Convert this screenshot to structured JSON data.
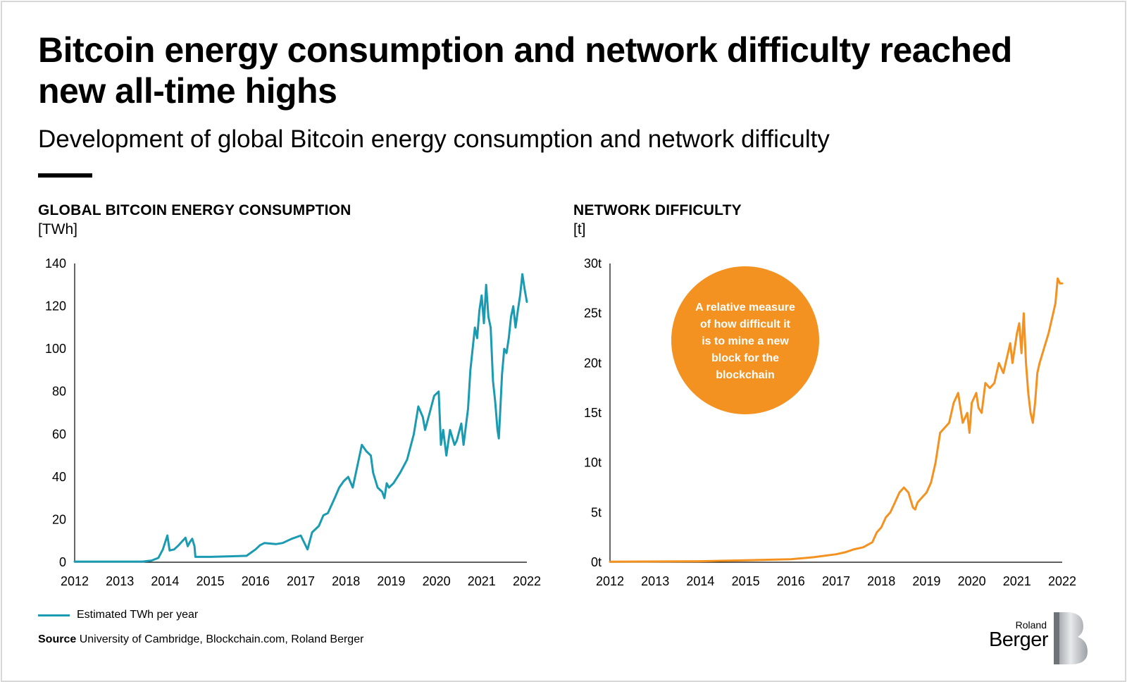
{
  "header": {
    "title": "Bitcoin energy consumption and network difficulty reached new all-time highs",
    "subtitle": "Development of global Bitcoin energy consumption and network difficulty"
  },
  "chart_data": [
    {
      "type": "line",
      "title": "GLOBAL BITCOIN ENERGY CONSUMPTION",
      "unit": "[TWh]",
      "color": "#1a9bb2",
      "xlim": [
        2012,
        2022
      ],
      "ylim": [
        0,
        140
      ],
      "x_ticks": [
        "2012",
        "2013",
        "2014",
        "2015",
        "2016",
        "2017",
        "2018",
        "2019",
        "2020",
        "2021",
        "2022"
      ],
      "y_ticks": [
        "0",
        "20",
        "40",
        "60",
        "80",
        "100",
        "120",
        "140"
      ],
      "y_tick_values": [
        0,
        20,
        40,
        60,
        80,
        100,
        120,
        140
      ],
      "series": [
        {
          "name": "Estimated TWh per year",
          "x": [
            2012.0,
            2013.0,
            2013.5,
            2013.7,
            2013.85,
            2013.95,
            2014.05,
            2014.1,
            2014.2,
            2014.3,
            2014.45,
            2014.5,
            2014.55,
            2014.6,
            2014.65,
            2014.67,
            2015.0,
            2015.5,
            2015.8,
            2016.0,
            2016.1,
            2016.2,
            2016.45,
            2016.6,
            2016.8,
            2017.0,
            2017.15,
            2017.25,
            2017.4,
            2017.5,
            2017.6,
            2017.75,
            2017.85,
            2017.95,
            2018.05,
            2018.15,
            2018.25,
            2018.35,
            2018.45,
            2018.55,
            2018.6,
            2018.7,
            2018.8,
            2018.85,
            2018.9,
            2018.95,
            2019.05,
            2019.2,
            2019.35,
            2019.5,
            2019.6,
            2019.7,
            2019.75,
            2019.85,
            2019.95,
            2020.05,
            2020.1,
            2020.15,
            2020.22,
            2020.3,
            2020.4,
            2020.45,
            2020.55,
            2020.6,
            2020.7,
            2020.75,
            2020.85,
            2020.9,
            2020.95,
            2021.0,
            2021.05,
            2021.1,
            2021.15,
            2021.2,
            2021.25,
            2021.3,
            2021.35,
            2021.38,
            2021.42,
            2021.45,
            2021.5,
            2021.55,
            2021.6,
            2021.65,
            2021.7,
            2021.75,
            2021.8,
            2021.85,
            2021.9,
            2021.95,
            2022.0
          ],
          "y": [
            0.3,
            0.3,
            0.3,
            0.8,
            2.0,
            6.0,
            12.5,
            5.5,
            6.0,
            8.0,
            11.5,
            7.5,
            9.5,
            11.0,
            7.5,
            2.5,
            2.5,
            2.8,
            3.0,
            6.0,
            8.0,
            9.0,
            8.5,
            9.0,
            11.0,
            12.5,
            6.0,
            14.0,
            17.0,
            22.0,
            23.0,
            30.0,
            35.0,
            38.0,
            40.0,
            35.0,
            45.0,
            55.0,
            52.0,
            50.0,
            42.0,
            35.0,
            33.0,
            30.0,
            37.0,
            35.0,
            37.0,
            42.0,
            48.0,
            60.0,
            73.0,
            68.0,
            62.0,
            70.0,
            78.0,
            80.0,
            55.0,
            62.0,
            50.0,
            62.0,
            55.0,
            57.0,
            65.0,
            55.0,
            72.0,
            90.0,
            110.0,
            105.0,
            118.0,
            125.0,
            112.0,
            130.0,
            115.0,
            110.0,
            85.0,
            75.0,
            62.0,
            58.0,
            75.0,
            88.0,
            100.0,
            98.0,
            105.0,
            115.0,
            120.0,
            110.0,
            118.0,
            125.0,
            135.0,
            128.0,
            122.0
          ]
        }
      ]
    },
    {
      "type": "line",
      "title": "NETWORK DIFFICULTY",
      "unit": "[t]",
      "color": "#f39220",
      "xlim": [
        2012,
        2022
      ],
      "ylim": [
        0,
        30
      ],
      "x_ticks": [
        "2012",
        "2013",
        "2014",
        "2015",
        "2016",
        "2017",
        "2018",
        "2019",
        "2020",
        "2021",
        "2022"
      ],
      "y_ticks": [
        "0t",
        "5t",
        "10t",
        "15t",
        "20t",
        "25t",
        "30t"
      ],
      "y_tick_values": [
        0,
        5,
        10,
        15,
        20,
        25,
        30
      ],
      "annotation": "A relative measure of how difficult it is to mine a new block for the blockchain",
      "series": [
        {
          "name": "Network difficulty",
          "x": [
            2012.0,
            2014.0,
            2015.0,
            2016.0,
            2016.5,
            2017.0,
            2017.2,
            2017.4,
            2017.6,
            2017.8,
            2017.9,
            2018.0,
            2018.1,
            2018.2,
            2018.3,
            2018.4,
            2018.5,
            2018.6,
            2018.7,
            2018.75,
            2018.8,
            2018.9,
            2019.0,
            2019.1,
            2019.2,
            2019.3,
            2019.4,
            2019.5,
            2019.6,
            2019.7,
            2019.75,
            2019.8,
            2019.9,
            2019.95,
            2020.0,
            2020.1,
            2020.15,
            2020.22,
            2020.3,
            2020.4,
            2020.5,
            2020.6,
            2020.7,
            2020.8,
            2020.85,
            2020.9,
            2021.0,
            2021.05,
            2021.1,
            2021.15,
            2021.2,
            2021.25,
            2021.3,
            2021.35,
            2021.4,
            2021.45,
            2021.5,
            2021.6,
            2021.7,
            2021.8,
            2021.85,
            2021.9,
            2021.95,
            2022.0
          ],
          "y": [
            0.05,
            0.1,
            0.2,
            0.3,
            0.5,
            0.8,
            1.0,
            1.3,
            1.5,
            2.0,
            3.0,
            3.5,
            4.5,
            5.0,
            6.0,
            7.0,
            7.5,
            7.0,
            5.5,
            5.3,
            6.0,
            6.5,
            7.0,
            8.0,
            10.0,
            13.0,
            13.5,
            14.0,
            16.0,
            17.0,
            15.5,
            14.0,
            15.0,
            13.0,
            16.0,
            17.0,
            15.5,
            15.0,
            18.0,
            17.5,
            18.0,
            20.0,
            19.0,
            21.0,
            22.0,
            20.0,
            23.0,
            24.0,
            21.0,
            25.0,
            20.0,
            17.0,
            15.0,
            14.0,
            16.0,
            19.0,
            20.0,
            21.5,
            23.0,
            25.0,
            26.0,
            28.5,
            28.0,
            28.0
          ]
        }
      ]
    }
  ],
  "legend": {
    "label": "Estimated TWh per year"
  },
  "source": {
    "label": "Source",
    "text": "University of Cambridge, Blockchain.com, Roland Berger"
  },
  "logo": {
    "line1": "Roland",
    "line2": "Berger"
  }
}
